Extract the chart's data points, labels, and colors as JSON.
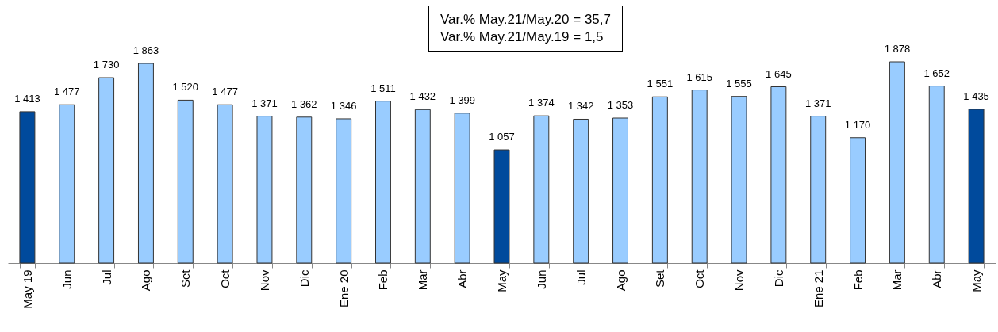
{
  "chart_data": {
    "type": "bar",
    "categories": [
      "May 19",
      "Jun",
      "Jul",
      "Ago",
      "Set",
      "Oct",
      "Nov",
      "Dic",
      "Ene 20",
      "Feb",
      "Mar",
      "Abr",
      "May",
      "Jun",
      "Jul",
      "Ago",
      "Set",
      "Oct",
      "Nov",
      "Dic",
      "Ene 21",
      "Feb",
      "Mar",
      "Abr",
      "May"
    ],
    "values": [
      1413,
      1477,
      1730,
      1863,
      1520,
      1477,
      1371,
      1362,
      1346,
      1511,
      1432,
      1399,
      1057,
      1374,
      1342,
      1353,
      1551,
      1615,
      1555,
      1645,
      1371,
      1170,
      1878,
      1652,
      1435
    ],
    "value_labels": [
      "1 413",
      "1 477",
      "1 730",
      "1 863",
      "1 520",
      "1 477",
      "1 371",
      "1 362",
      "1 346",
      "1 511",
      "1 432",
      "1 399",
      "1 057",
      "1 374",
      "1 342",
      "1 353",
      "1 551",
      "1 615",
      "1 555",
      "1 645",
      "1 371",
      "1 170",
      "1 878",
      "1 652",
      "1 435"
    ],
    "colors": [
      "#004a9c",
      "#99ccff",
      "#99ccff",
      "#99ccff",
      "#99ccff",
      "#99ccff",
      "#99ccff",
      "#99ccff",
      "#99ccff",
      "#99ccff",
      "#99ccff",
      "#99ccff",
      "#004a9c",
      "#99ccff",
      "#99ccff",
      "#99ccff",
      "#99ccff",
      "#99ccff",
      "#99ccff",
      "#99ccff",
      "#99ccff",
      "#99ccff",
      "#99ccff",
      "#99ccff",
      "#004a9c"
    ],
    "annotations": [
      "Var.% May.21/May.20 = 35,7",
      "Var.% May.21/May.19 = 1,5"
    ]
  }
}
